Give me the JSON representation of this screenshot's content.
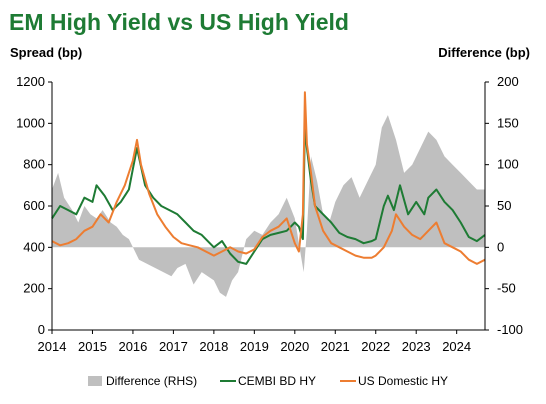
{
  "chart_data": {
    "type": "line",
    "title": "EM High Yield vs US High Yield",
    "ylabel_left": "Spread (bp)",
    "ylabel_right": "Difference (bp)",
    "xlim": [
      2014,
      2024.7
    ],
    "ylim_left": [
      0,
      1200
    ],
    "ylim_right": [
      -100,
      200
    ],
    "x_ticks": [
      2014,
      2015,
      2016,
      2017,
      2018,
      2019,
      2020,
      2021,
      2022,
      2023,
      2024
    ],
    "y_ticks_left": [
      0,
      200,
      400,
      600,
      800,
      1000,
      1200
    ],
    "y_ticks_right": [
      -100,
      -50,
      0,
      50,
      100,
      150,
      200
    ],
    "grid": false,
    "legend_position": "bottom",
    "series": [
      {
        "name": "Difference (RHS)",
        "kind": "area",
        "axis": "right",
        "color": "#bfbfbf",
        "x": [
          2014.0,
          2014.15,
          2014.3,
          2014.5,
          2014.65,
          2014.8,
          2014.95,
          2015.1,
          2015.25,
          2015.45,
          2015.6,
          2015.75,
          2015.9,
          2016.05,
          2016.15,
          2016.35,
          2016.55,
          2016.75,
          2016.95,
          2017.1,
          2017.3,
          2017.5,
          2017.7,
          2017.85,
          2018.0,
          2018.15,
          2018.3,
          2018.45,
          2018.6,
          2018.8,
          2019.0,
          2019.2,
          2019.4,
          2019.6,
          2019.8,
          2020.0,
          2020.15,
          2020.22,
          2020.3,
          2020.4,
          2020.55,
          2020.7,
          2020.85,
          2021.0,
          2021.2,
          2021.4,
          2021.6,
          2021.8,
          2022.0,
          2022.15,
          2022.3,
          2022.5,
          2022.7,
          2022.9,
          2023.1,
          2023.3,
          2023.5,
          2023.7,
          2023.9,
          2024.1,
          2024.3,
          2024.5,
          2024.7
        ],
        "values": [
          70,
          90,
          60,
          45,
          30,
          50,
          40,
          35,
          45,
          30,
          25,
          15,
          10,
          -5,
          -15,
          -20,
          -25,
          -30,
          -35,
          -25,
          -20,
          -45,
          -30,
          -35,
          -40,
          -55,
          -60,
          -40,
          -30,
          10,
          20,
          15,
          30,
          40,
          60,
          35,
          -10,
          -30,
          20,
          110,
          80,
          40,
          30,
          55,
          75,
          85,
          60,
          80,
          100,
          145,
          160,
          130,
          90,
          100,
          120,
          140,
          130,
          110,
          100,
          90,
          80,
          70,
          70
        ]
      },
      {
        "name": "CEMBI BD HY",
        "kind": "line",
        "axis": "left",
        "color": "#1e7b34",
        "x": [
          2014.0,
          2014.2,
          2014.4,
          2014.6,
          2014.8,
          2015.0,
          2015.1,
          2015.3,
          2015.5,
          2015.7,
          2015.9,
          2016.0,
          2016.1,
          2016.3,
          2016.5,
          2016.7,
          2016.9,
          2017.1,
          2017.3,
          2017.5,
          2017.7,
          2017.9,
          2018.0,
          2018.2,
          2018.4,
          2018.6,
          2018.8,
          2019.0,
          2019.2,
          2019.4,
          2019.6,
          2019.8,
          2020.0,
          2020.1,
          2020.2,
          2020.25,
          2020.3,
          2020.4,
          2020.5,
          2020.7,
          2020.9,
          2021.1,
          2021.3,
          2021.5,
          2021.7,
          2021.9,
          2022.0,
          2022.2,
          2022.3,
          2022.45,
          2022.6,
          2022.8,
          2023.0,
          2023.2,
          2023.3,
          2023.5,
          2023.7,
          2023.9,
          2024.1,
          2024.3,
          2024.5,
          2024.7
        ],
        "values": [
          540,
          600,
          580,
          560,
          640,
          620,
          700,
          650,
          580,
          620,
          680,
          780,
          880,
          700,
          640,
          600,
          580,
          560,
          520,
          480,
          460,
          420,
          400,
          430,
          370,
          330,
          320,
          380,
          440,
          460,
          470,
          480,
          520,
          500,
          440,
          1000,
          880,
          720,
          600,
          560,
          520,
          470,
          450,
          440,
          420,
          430,
          440,
          600,
          650,
          580,
          700,
          560,
          620,
          560,
          640,
          680,
          620,
          580,
          520,
          450,
          430,
          460
        ]
      },
      {
        "name": "US Domestic HY",
        "kind": "line",
        "axis": "left",
        "color": "#ed7d31",
        "x": [
          2014.0,
          2014.2,
          2014.4,
          2014.6,
          2014.8,
          2015.0,
          2015.2,
          2015.4,
          2015.6,
          2015.8,
          2016.0,
          2016.1,
          2016.2,
          2016.4,
          2016.6,
          2016.8,
          2017.0,
          2017.2,
          2017.4,
          2017.6,
          2017.8,
          2018.0,
          2018.2,
          2018.4,
          2018.6,
          2018.8,
          2019.0,
          2019.2,
          2019.4,
          2019.6,
          2019.8,
          2020.0,
          2020.1,
          2020.2,
          2020.25,
          2020.3,
          2020.4,
          2020.5,
          2020.7,
          2020.9,
          2021.1,
          2021.3,
          2021.5,
          2021.7,
          2021.9,
          2022.0,
          2022.2,
          2022.4,
          2022.5,
          2022.7,
          2022.9,
          2023.1,
          2023.3,
          2023.5,
          2023.7,
          2023.9,
          2024.1,
          2024.3,
          2024.5,
          2024.7
        ],
        "values": [
          430,
          410,
          420,
          440,
          480,
          500,
          560,
          520,
          620,
          700,
          820,
          920,
          800,
          660,
          560,
          500,
          450,
          420,
          410,
          400,
          380,
          360,
          380,
          400,
          380,
          370,
          390,
          450,
          480,
          500,
          540,
          420,
          380,
          560,
          1150,
          900,
          760,
          600,
          480,
          420,
          400,
          380,
          360,
          350,
          350,
          360,
          400,
          480,
          560,
          500,
          460,
          440,
          480,
          520,
          420,
          400,
          380,
          340,
          320,
          340
        ]
      }
    ]
  }
}
